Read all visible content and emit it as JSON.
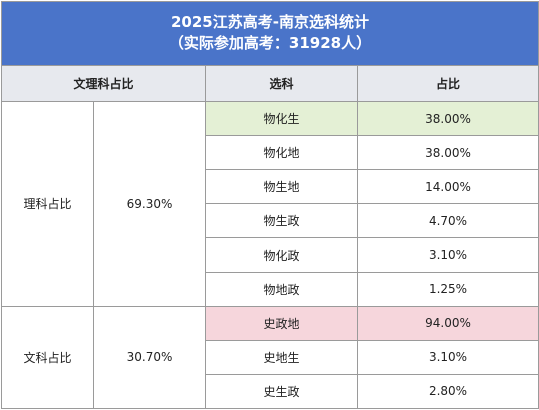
{
  "title": {
    "line1": "2025江苏高考-南京选科统计",
    "line2": "（实际参加高考：31928人）"
  },
  "headers": {
    "category": "文理科占比",
    "subject": "选科",
    "ratio": "占比"
  },
  "groups": [
    {
      "label": "理科占比",
      "percent": "69.30%",
      "rows": [
        {
          "subject": "物化生",
          "ratio": "38.00%",
          "highlight": "#e4f0d5"
        },
        {
          "subject": "物化地",
          "ratio": "38.00%"
        },
        {
          "subject": "物生地",
          "ratio": "14.00%"
        },
        {
          "subject": "物生政",
          "ratio": "4.70%"
        },
        {
          "subject": "物化政",
          "ratio": "3.10%"
        },
        {
          "subject": "物地政",
          "ratio": "1.25%"
        }
      ]
    },
    {
      "label": "文科占比",
      "percent": "30.70%",
      "rows": [
        {
          "subject": "史政地",
          "ratio": "94.00%",
          "highlight": "#f6d6dc"
        },
        {
          "subject": "史地生",
          "ratio": "3.10%"
        },
        {
          "subject": "史生政",
          "ratio": "2.80%"
        }
      ]
    }
  ],
  "colors": {
    "title_background": "#4a74c9",
    "header_background": "#e7e9ee",
    "grid": "#9a9a9a"
  }
}
